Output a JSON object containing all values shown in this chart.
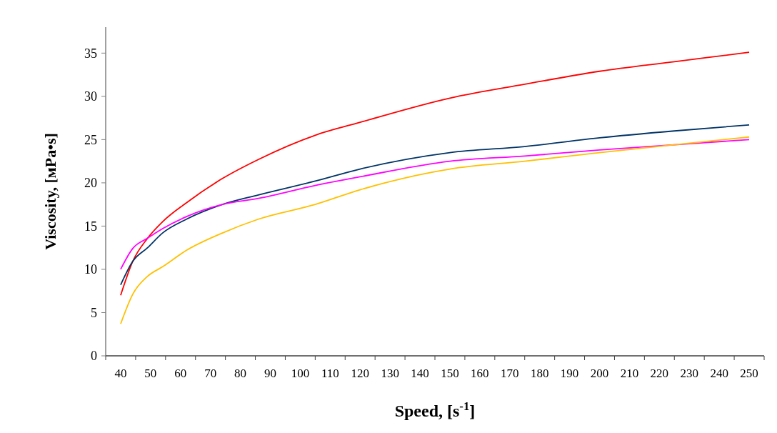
{
  "chart_data": {
    "type": "line",
    "xlabel": "Speed, [s$^{-1}$]",
    "ylabel": "Viscosity, [мPa•s]",
    "x": [
      40,
      44,
      49,
      54,
      62,
      74,
      86,
      105,
      120,
      150,
      175,
      200,
      225,
      250
    ],
    "series": [
      {
        "color": "#ff0000",
        "values": [
          7.0,
          10.9,
          13.6,
          15.5,
          17.7,
          20.5,
          22.7,
          25.5,
          27.0,
          29.8,
          31.4,
          32.9,
          34.0,
          35.1
        ]
      },
      {
        "color": "#003366",
        "values": [
          8.2,
          10.9,
          12.5,
          14.2,
          15.8,
          17.5,
          18.6,
          20.2,
          21.6,
          23.5,
          24.2,
          25.2,
          26.0,
          26.7
        ]
      },
      {
        "color": "#ff00ff",
        "values": [
          10.0,
          12.4,
          13.6,
          14.7,
          16.1,
          17.5,
          18.2,
          19.7,
          20.7,
          22.5,
          23.1,
          23.8,
          24.4,
          25.0
        ]
      },
      {
        "color": "#ffc000",
        "values": [
          3.7,
          7.1,
          9.2,
          10.3,
          12.2,
          14.2,
          15.8,
          17.5,
          19.2,
          21.6,
          22.5,
          23.5,
          24.4,
          25.3
        ]
      }
    ],
    "xlim": [
      35,
      255
    ],
    "xticks": [
      {
        "value": 35,
        "label": null
      },
      40,
      {
        "value": 45,
        "label": null
      },
      50,
      {
        "value": 55,
        "label": null
      },
      60,
      {
        "value": 65,
        "label": null
      },
      70,
      {
        "value": 75,
        "label": null
      },
      80,
      {
        "value": 85,
        "label": null
      },
      90,
      {
        "value": 95,
        "label": null
      },
      100,
      {
        "value": 105,
        "label": null
      },
      110,
      {
        "value": 115,
        "label": null
      },
      120,
      {
        "value": 125,
        "label": null
      },
      130,
      {
        "value": 135,
        "label": null
      },
      140,
      {
        "value": 145,
        "label": null
      },
      150,
      {
        "value": 155,
        "label": null
      },
      160,
      {
        "value": 165,
        "label": null
      },
      170,
      {
        "value": 175,
        "label": null
      },
      180,
      {
        "value": 185,
        "label": null
      },
      190,
      {
        "value": 195,
        "label": null
      },
      200,
      {
        "value": 205,
        "label": null
      },
      210,
      {
        "value": 215,
        "label": null
      },
      220,
      {
        "value": 225,
        "label": null
      },
      230,
      {
        "value": 235,
        "label": null
      },
      240,
      {
        "value": 245,
        "label": null
      },
      250,
      {
        "value": 255,
        "label": null
      }
    ],
    "ylim": [
      0,
      38
    ],
    "yticks": [
      0,
      5,
      10,
      15,
      20,
      25,
      30,
      35
    ],
    "grid": false,
    "marker": "none",
    "line_style": "solid"
  }
}
